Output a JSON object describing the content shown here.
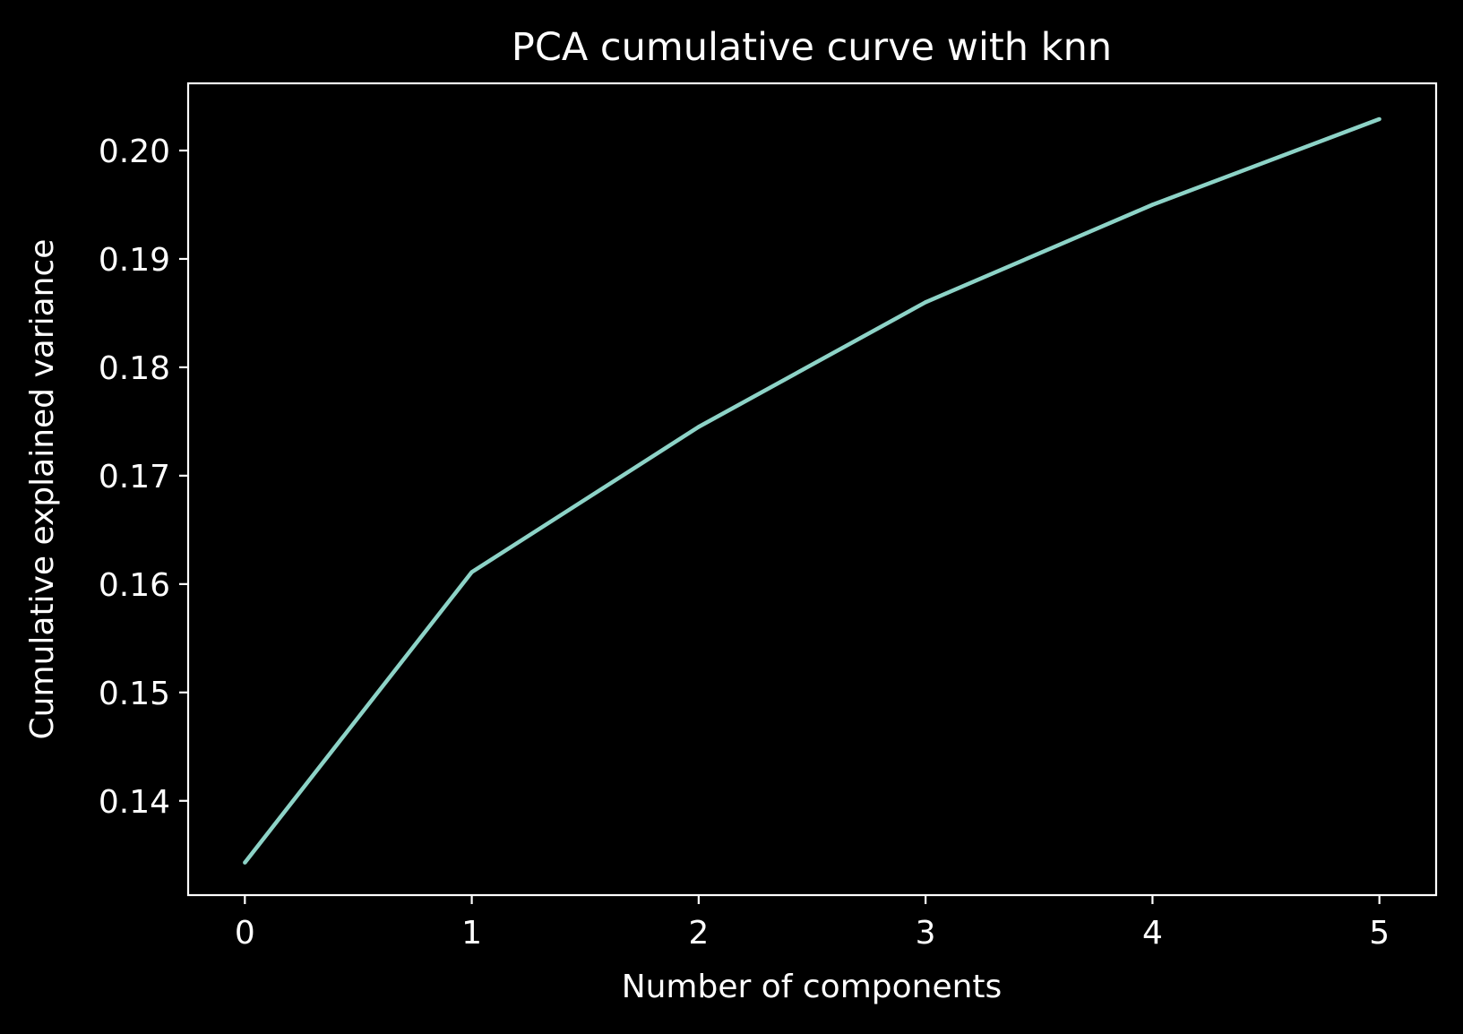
{
  "chart_data": {
    "type": "line",
    "title": "PCA cumulative curve with knn",
    "xlabel": "Number of components",
    "ylabel": "Cumulative explained variance",
    "x": [
      0,
      1,
      2,
      3,
      4,
      5
    ],
    "series": [
      {
        "values": [
          0.1343,
          0.1611,
          0.1745,
          0.186,
          0.195,
          0.2029
        ]
      }
    ],
    "xlim": [
      -0.25,
      5.25
    ],
    "ylim": [
      0.1313,
      0.2062
    ],
    "xticks": [
      "0",
      "1",
      "2",
      "3",
      "4",
      "5"
    ],
    "yticks": [
      "0.14",
      "0.15",
      "0.16",
      "0.17",
      "0.18",
      "0.19",
      "0.20"
    ],
    "grid": false,
    "line_color": "#8dd3c7",
    "background_color": "#000000",
    "foreground_color": "#ffffff"
  }
}
